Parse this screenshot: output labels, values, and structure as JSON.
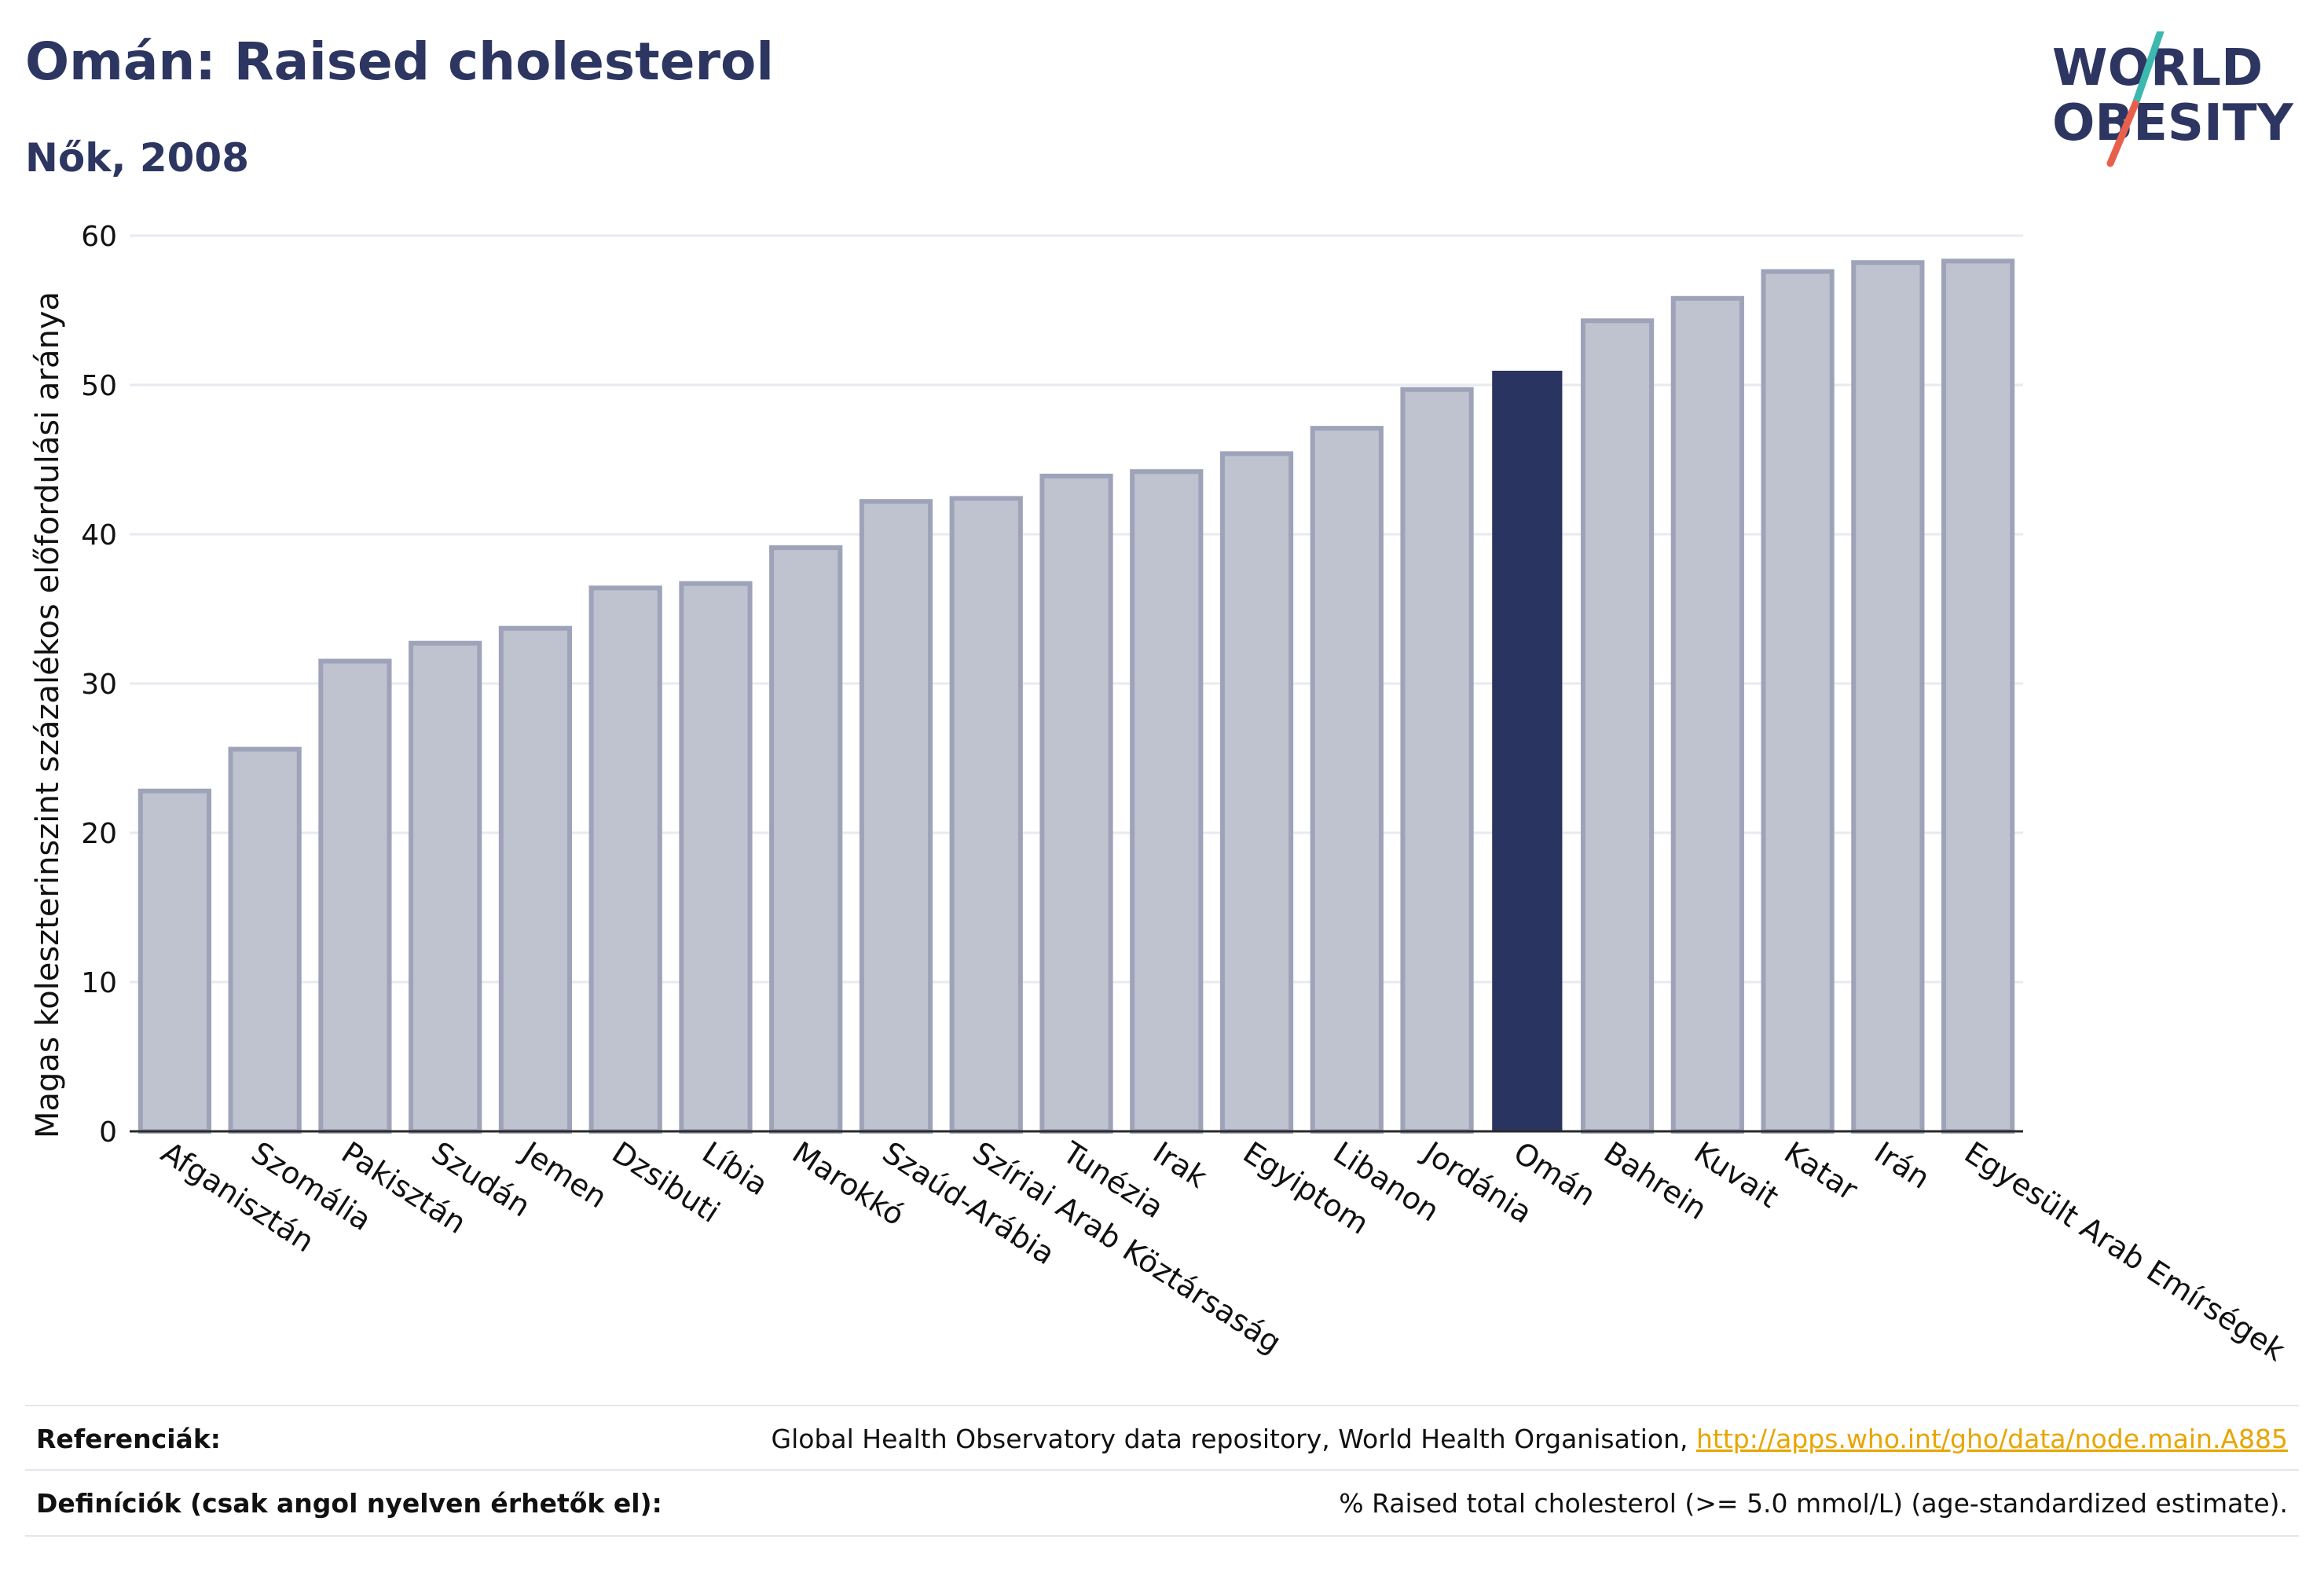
{
  "header": {
    "title": "Omán: Raised cholesterol",
    "subtitle": "Nők, 2008"
  },
  "logo": {
    "line1": "WORLD",
    "line2": "OBESITY",
    "colors": {
      "text": "#2d3561",
      "slash_top": "#3db8b0",
      "slash_bottom": "#e8604c"
    }
  },
  "chart_data": {
    "type": "bar",
    "categories": [
      "Afganisztán",
      "Szomália",
      "Pakisztán",
      "Szudán",
      "Jemen",
      "Dzsibuti",
      "Líbia",
      "Marokkó",
      "Szaúd-Arábia",
      "Szíriai Arab Köztársaság",
      "Tunézia",
      "Irak",
      "Egyiptom",
      "Libanon",
      "Jordánia",
      "Omán",
      "Bahrein",
      "Kuvait",
      "Katar",
      "Irán",
      "Egyesült Arab Emírségek"
    ],
    "values": [
      22.8,
      25.6,
      31.5,
      32.7,
      33.7,
      36.4,
      36.7,
      39.1,
      42.2,
      42.4,
      43.9,
      44.2,
      45.4,
      47.1,
      49.7,
      50.9,
      54.3,
      55.8,
      57.6,
      58.2,
      58.3
    ],
    "highlight": "Omán",
    "xlabel": "",
    "ylabel": "Magas koleszterinszint százalékos előfordulási aránya",
    "ylim": [
      0,
      60
    ],
    "yticks": [
      0,
      10,
      20,
      30,
      40,
      50,
      60
    ],
    "grid": true,
    "colors": {
      "bar": "#bfc2cf",
      "bar_edge": "#9ea3b9",
      "highlight": "#2a3461",
      "grid": "#e9eaf0",
      "axis": "#2a2a2a"
    }
  },
  "references": {
    "ref_label": "Referenciák:",
    "ref_text": "Global Health Observatory data repository, World Health Organisation, ",
    "ref_link": "http://apps.who.int/gho/data/node.main.A885",
    "def_label": "Definíciók (csak angol nyelven érhetők el):",
    "def_text": "% Raised total cholesterol (>= 5.0 mmol/L) (age-standardized estimate)."
  }
}
